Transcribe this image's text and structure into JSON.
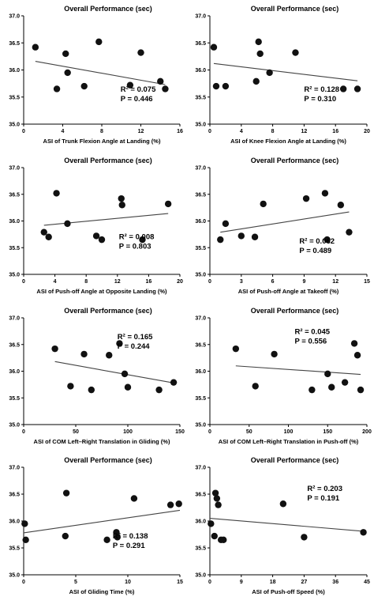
{
  "chart_data": [
    {
      "type": "scatter",
      "title": "Overall Performance (sec)",
      "xlabel": "ASI of Trunk Flexion Angle at Landing (%)",
      "xlim": [
        0,
        16
      ],
      "ylim": [
        35.0,
        37.0
      ],
      "xticks": [
        0,
        4,
        8,
        12,
        16
      ],
      "yticks": [
        35.0,
        35.5,
        36.0,
        36.5,
        37.0
      ],
      "x": [
        1.2,
        3.4,
        4.3,
        4.5,
        6.2,
        7.7,
        10.9,
        12.0,
        14.0,
        14.5
      ],
      "y": [
        36.42,
        35.65,
        36.3,
        35.95,
        35.7,
        36.52,
        35.72,
        36.32,
        35.79,
        35.65
      ],
      "fit": [
        [
          1.2,
          36.16
        ],
        [
          14.5,
          35.73
        ]
      ],
      "r2": "R² = 0.075",
      "p": "P = 0.446"
    },
    {
      "type": "scatter",
      "title": "Overall Performance (sec)",
      "xlabel": "ASI of Knee Flexion Angle at Landing (%)",
      "xlim": [
        0,
        20
      ],
      "ylim": [
        35.0,
        37.0
      ],
      "xticks": [
        0,
        4,
        8,
        12,
        16,
        20
      ],
      "yticks": [
        35.0,
        35.5,
        36.0,
        36.5,
        37.0
      ],
      "x": [
        0.5,
        0.8,
        2.0,
        5.9,
        6.2,
        6.4,
        7.6,
        10.9,
        17.0,
        18.8
      ],
      "y": [
        36.42,
        35.7,
        35.7,
        35.79,
        36.52,
        36.3,
        35.95,
        36.32,
        35.65,
        35.65
      ],
      "fit": [
        [
          0.5,
          36.12
        ],
        [
          18.8,
          35.8
        ]
      ],
      "r2": "R² = 0.128",
      "p": "P = 0.310"
    },
    {
      "type": "scatter",
      "title": "Overall Performance (sec)",
      "xlabel": "ASI of Push-off Angle at Opposite Landing (%)",
      "xlim": [
        0,
        20
      ],
      "ylim": [
        35.0,
        37.0
      ],
      "xticks": [
        0,
        4,
        8,
        12,
        16,
        20
      ],
      "yticks": [
        35.0,
        35.5,
        36.0,
        36.5,
        37.0
      ],
      "x": [
        2.6,
        3.2,
        4.2,
        5.6,
        9.3,
        10.0,
        12.5,
        12.6,
        15.2,
        18.5
      ],
      "y": [
        35.79,
        35.7,
        36.52,
        35.95,
        35.72,
        35.65,
        36.42,
        36.3,
        35.65,
        36.32
      ],
      "fit": [
        [
          2.6,
          35.92
        ],
        [
          18.5,
          36.14
        ]
      ],
      "r2": "R² = 0.008",
      "p": "P = 0.803"
    },
    {
      "type": "scatter",
      "title": "Overall Performance (sec)",
      "xlabel": "ASI of Push-off Angle at Takeoff (%)",
      "xlim": [
        0,
        15
      ],
      "ylim": [
        35.0,
        37.0
      ],
      "xticks": [
        0,
        3,
        6,
        9,
        12,
        15
      ],
      "yticks": [
        35.0,
        35.5,
        36.0,
        36.5,
        37.0
      ],
      "x": [
        1.0,
        1.5,
        3.0,
        4.3,
        5.1,
        9.2,
        11.0,
        11.2,
        12.5,
        13.3
      ],
      "y": [
        35.65,
        35.95,
        35.72,
        35.7,
        36.32,
        36.42,
        36.52,
        35.65,
        36.3,
        35.79
      ],
      "fit": [
        [
          1.0,
          35.79
        ],
        [
          13.3,
          36.17
        ]
      ],
      "r2": "R² = 0.062",
      "p": "P = 0.489"
    },
    {
      "type": "scatter",
      "title": "Overall Performance (sec)",
      "xlabel": "ASI of COM Left–Right Translation in Gliding (%)",
      "xlim": [
        0,
        150
      ],
      "ylim": [
        35.0,
        37.0
      ],
      "xticks": [
        0,
        50,
        100,
        150
      ],
      "yticks": [
        35.0,
        35.5,
        36.0,
        36.5,
        37.0
      ],
      "x": [
        30,
        45,
        58,
        65,
        82,
        92,
        97,
        100,
        130,
        144
      ],
      "y": [
        36.42,
        35.72,
        36.32,
        35.65,
        36.3,
        36.52,
        35.95,
        35.7,
        35.65,
        35.79
      ],
      "fit": [
        [
          30,
          36.18
        ],
        [
          144,
          35.78
        ]
      ],
      "r2": "R² = 0.165",
      "p": "P = 0.244"
    },
    {
      "type": "scatter",
      "title": "Overall Performance (sec)",
      "xlabel": "ASI of COM Left–Right Translation in Push-off (%)",
      "xlim": [
        0,
        200
      ],
      "ylim": [
        35.0,
        37.0
      ],
      "xticks": [
        0,
        50,
        100,
        150,
        200
      ],
      "yticks": [
        35.0,
        35.5,
        36.0,
        36.5,
        37.0
      ],
      "x": [
        33,
        58,
        82,
        130,
        150,
        155,
        172,
        184,
        188,
        192
      ],
      "y": [
        36.42,
        35.72,
        36.32,
        35.65,
        35.95,
        35.7,
        35.79,
        36.52,
        36.3,
        35.65
      ],
      "fit": [
        [
          33,
          36.1
        ],
        [
          192,
          35.94
        ]
      ],
      "r2": "R² = 0.045",
      "p": "P = 0.556"
    },
    {
      "type": "scatter",
      "title": "Overall Performance (sec)",
      "xlabel": "ASI of Gliding Time (%)",
      "xlim": [
        0,
        15
      ],
      "ylim": [
        35.0,
        37.0
      ],
      "xticks": [
        0,
        5,
        10,
        15
      ],
      "yticks": [
        35.0,
        35.5,
        36.0,
        36.5,
        37.0
      ],
      "x": [
        0.1,
        0.2,
        4.0,
        4.1,
        8.0,
        8.9,
        9.0,
        10.6,
        14.1,
        14.9
      ],
      "y": [
        35.95,
        35.65,
        35.72,
        36.52,
        35.65,
        35.79,
        35.7,
        36.42,
        36.3,
        36.32
      ],
      "fit": [
        [
          0,
          35.78
        ],
        [
          15,
          36.2
        ]
      ],
      "r2": "R² = 0.138",
      "p": "P = 0.291"
    },
    {
      "type": "scatter",
      "title": "Overall Performance (sec)",
      "xlabel": "ASI of Push-off Speed (%)",
      "xlim": [
        0,
        45
      ],
      "ylim": [
        35.0,
        37.0
      ],
      "xticks": [
        0,
        9,
        18,
        27,
        36,
        45
      ],
      "yticks": [
        35.0,
        35.5,
        36.0,
        36.5,
        37.0
      ],
      "x": [
        0.3,
        1.3,
        1.6,
        2.0,
        2.4,
        3.2,
        3.9,
        21.0,
        27.0,
        44.0
      ],
      "y": [
        35.95,
        35.72,
        36.52,
        36.42,
        36.3,
        35.65,
        35.65,
        36.32,
        35.7,
        35.79
      ],
      "fit": [
        [
          0,
          36.05
        ],
        [
          44,
          35.81
        ]
      ],
      "r2": "R² = 0.203",
      "p": "P = 0.191"
    }
  ]
}
